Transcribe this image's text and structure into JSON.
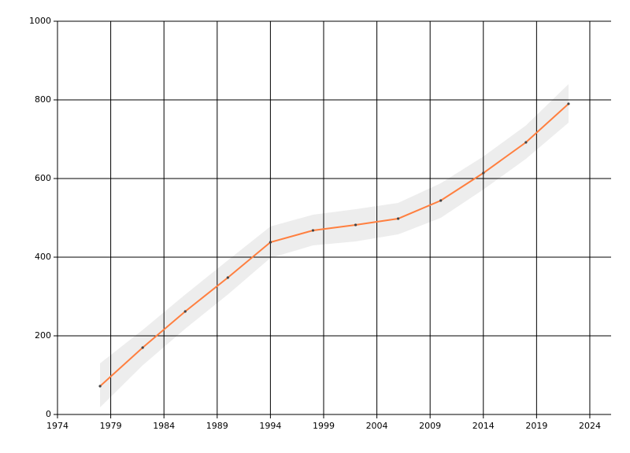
{
  "chart_data": {
    "type": "line",
    "x": [
      1978,
      1982,
      1986,
      1990,
      1994,
      1998,
      2002,
      2006,
      2010,
      2014,
      2018,
      2022
    ],
    "series": [
      {
        "color": "#ff7f3f",
        "band_color": "#ededed",
        "values": [
          72,
          170,
          262,
          348,
          438,
          468,
          482,
          498,
          544,
          614,
          692,
          790
        ],
        "lower": [
          18,
          125,
          218,
          305,
          398,
          430,
          440,
          458,
          500,
          572,
          650,
          742
        ],
        "upper": [
          130,
          215,
          305,
          392,
          478,
          508,
          522,
          538,
          588,
          656,
          735,
          840
        ]
      }
    ],
    "xlim": [
      1974,
      2026
    ],
    "xticks": [
      1974,
      1979,
      1984,
      1989,
      1994,
      1999,
      2004,
      2009,
      2014,
      2019,
      2024
    ],
    "ylim": [
      0,
      1000
    ],
    "yticks": [
      0,
      200,
      400,
      600,
      800,
      1000
    ],
    "grid": true
  }
}
